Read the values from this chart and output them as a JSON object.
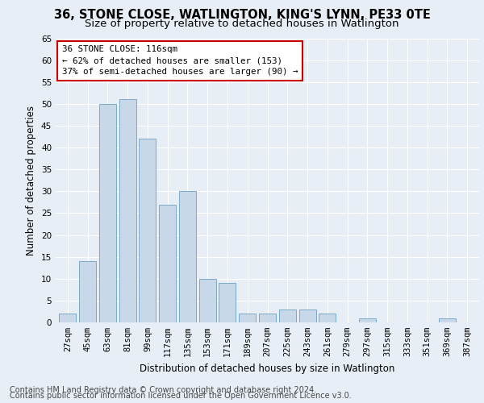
{
  "title": "36, STONE CLOSE, WATLINGTON, KING'S LYNN, PE33 0TE",
  "subtitle": "Size of property relative to detached houses in Watlington",
  "xlabel": "Distribution of detached houses by size in Watlington",
  "ylabel": "Number of detached properties",
  "categories": [
    "27sqm",
    "45sqm",
    "63sqm",
    "81sqm",
    "99sqm",
    "117sqm",
    "135sqm",
    "153sqm",
    "171sqm",
    "189sqm",
    "207sqm",
    "225sqm",
    "243sqm",
    "261sqm",
    "279sqm",
    "297sqm",
    "315sqm",
    "333sqm",
    "351sqm",
    "369sqm",
    "387sqm"
  ],
  "values": [
    2,
    14,
    50,
    51,
    42,
    27,
    30,
    10,
    9,
    2,
    2,
    3,
    3,
    2,
    0,
    1,
    0,
    0,
    0,
    1,
    0
  ],
  "bar_color": "#c8d8e8",
  "bar_edge_color": "#7aaac8",
  "annotation_title": "36 STONE CLOSE: 116sqm",
  "annotation_line1": "← 62% of detached houses are smaller (153)",
  "annotation_line2": "37% of semi-detached houses are larger (90) →",
  "annotation_box_facecolor": "#ffffff",
  "annotation_box_edgecolor": "#cc0000",
  "ylim": [
    0,
    65
  ],
  "yticks": [
    0,
    5,
    10,
    15,
    20,
    25,
    30,
    35,
    40,
    45,
    50,
    55,
    60,
    65
  ],
  "background_color": "#e8eef5",
  "plot_bg_color": "#e8eef5",
  "grid_color": "#ffffff",
  "footer_line1": "Contains HM Land Registry data © Crown copyright and database right 2024.",
  "footer_line2": "Contains public sector information licensed under the Open Government Licence v3.0.",
  "title_fontsize": 10.5,
  "subtitle_fontsize": 9.5,
  "xlabel_fontsize": 8.5,
  "ylabel_fontsize": 8.5,
  "tick_fontsize": 7.5,
  "annotation_fontsize": 7.8,
  "footer_fontsize": 7.0
}
